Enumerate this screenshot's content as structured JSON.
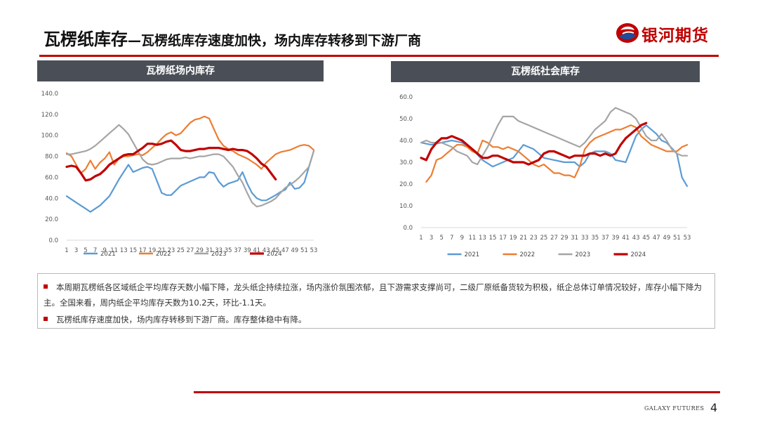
{
  "header": {
    "title_main": "瓦楞纸库存",
    "title_sub": "—瓦楞纸库存速度加快，场内库存转移到下游厂商",
    "logo_text": "银河期货"
  },
  "colors": {
    "accent": "#c00000",
    "header_bar": "#4a4f57",
    "s2021": "#5b9bd5",
    "s2022": "#ed7d31",
    "s2023": "#a5a5a5",
    "s2024": "#c00000"
  },
  "charts": {
    "left_title": "瓦楞纸场内库存",
    "right_title": "瓦楞纸社会库存"
  },
  "chart_data": [
    {
      "type": "line",
      "title": "瓦楞纸场内库存",
      "ylim": [
        0,
        140
      ],
      "ytick_labels": [
        "0.0",
        "20.0",
        "40.0",
        "60.0",
        "80.0",
        "100.0",
        "120.0",
        "140.0"
      ],
      "xtick_labels": [
        "1",
        "3",
        "5",
        "7",
        "9",
        "11",
        "13",
        "15",
        "17",
        "19",
        "21",
        "23",
        "25",
        "27",
        "29",
        "31",
        "33",
        "35",
        "37",
        "39",
        "41",
        "43",
        "45",
        "47",
        "49",
        "51",
        "53"
      ],
      "x_range": [
        1,
        53
      ],
      "legend_position": "bottom",
      "series": [
        {
          "name": "2021",
          "color": "#5b9bd5",
          "x": [
            1,
            3,
            5,
            6,
            8,
            10,
            12,
            13,
            14,
            15,
            17,
            18,
            19,
            21,
            22,
            23,
            25,
            27,
            29,
            30,
            31,
            32,
            33,
            34,
            35,
            37,
            38,
            39,
            40,
            41,
            42,
            43,
            45,
            46,
            47,
            48,
            49,
            50,
            51,
            52,
            53
          ],
          "values": [
            42,
            36,
            30,
            27,
            33,
            42,
            58,
            65,
            72,
            65,
            69,
            70,
            68,
            45,
            43,
            43,
            52,
            56,
            60,
            60,
            65,
            64,
            56,
            51,
            54,
            57,
            65,
            54,
            45,
            40,
            38,
            38,
            43,
            46,
            48,
            55,
            49,
            50,
            55,
            70,
            85
          ]
        },
        {
          "name": "2022",
          "color": "#ed7d31",
          "x": [
            1,
            2,
            3,
            4,
            5,
            6,
            7,
            8,
            9,
            10,
            11,
            12,
            13,
            14,
            15,
            16,
            17,
            18,
            19,
            20,
            21,
            22,
            23,
            24,
            25,
            26,
            27,
            28,
            29,
            30,
            31,
            32,
            33,
            34,
            35,
            36,
            37,
            38,
            39,
            40,
            41,
            42,
            43,
            44,
            45,
            46,
            47,
            48,
            49,
            50,
            51,
            52,
            53
          ],
          "values": [
            83,
            80,
            72,
            64,
            68,
            76,
            68,
            74,
            78,
            84,
            72,
            78,
            80,
            80,
            81,
            82,
            81,
            84,
            88,
            92,
            97,
            101,
            103,
            100,
            102,
            107,
            112,
            115,
            116,
            118,
            116,
            106,
            96,
            90,
            87,
            85,
            82,
            80,
            78,
            75,
            72,
            68,
            74,
            78,
            82,
            84,
            85,
            86,
            88,
            90,
            91,
            90,
            86
          ]
        },
        {
          "name": "2023",
          "color": "#a5a5a5",
          "x": [
            1,
            2,
            3,
            4,
            5,
            6,
            7,
            8,
            9,
            10,
            11,
            12,
            13,
            14,
            15,
            16,
            17,
            18,
            19,
            20,
            21,
            22,
            23,
            24,
            25,
            26,
            27,
            28,
            29,
            30,
            31,
            32,
            33,
            34,
            35,
            36,
            37,
            38,
            39,
            40,
            41,
            42,
            43,
            44,
            45,
            46,
            47,
            48,
            49,
            50,
            51,
            52,
            53
          ],
          "values": [
            82,
            82,
            83,
            84,
            85,
            87,
            90,
            94,
            98,
            102,
            106,
            110,
            106,
            101,
            93,
            85,
            77,
            73,
            72,
            73,
            75,
            77,
            78,
            78,
            78,
            79,
            78,
            79,
            80,
            80,
            81,
            82,
            82,
            80,
            75,
            70,
            62,
            55,
            45,
            36,
            32,
            33,
            35,
            37,
            40,
            45,
            50,
            53,
            56,
            60,
            65,
            70,
            85
          ]
        },
        {
          "name": "2024",
          "color": "#c00000",
          "x": [
            1,
            2,
            3,
            4,
            5,
            6,
            7,
            8,
            9,
            10,
            11,
            12,
            13,
            14,
            15,
            16,
            17,
            18,
            19,
            20,
            21,
            22,
            23,
            24,
            25,
            26,
            27,
            28,
            29,
            30,
            31,
            32,
            33,
            34,
            35,
            36,
            37,
            38,
            39,
            40,
            41,
            42,
            43,
            44,
            45
          ],
          "values": [
            70,
            71,
            70,
            64,
            57,
            58,
            61,
            63,
            67,
            72,
            75,
            78,
            81,
            82,
            82,
            85,
            88,
            92,
            92,
            91,
            92,
            94,
            95,
            91,
            86,
            85,
            85,
            86,
            87,
            87,
            88,
            88,
            88,
            87,
            86,
            87,
            86,
            86,
            85,
            82,
            78,
            73,
            70,
            64,
            58
          ]
        }
      ]
    },
    {
      "type": "line",
      "title": "瓦楞纸社会库存",
      "ylim": [
        0,
        60
      ],
      "ytick_labels": [
        "0.0",
        "10.0",
        "20.0",
        "30.0",
        "40.0",
        "50.0",
        "60.0"
      ],
      "xtick_labels": [
        "1",
        "3",
        "5",
        "7",
        "9",
        "11",
        "13",
        "15",
        "17",
        "19",
        "21",
        "23",
        "25",
        "27",
        "29",
        "31",
        "33",
        "35",
        "37",
        "39",
        "41",
        "43",
        "45",
        "47",
        "49",
        "51",
        "53"
      ],
      "x_range": [
        1,
        53
      ],
      "legend_position": "bottom",
      "series": [
        {
          "name": "2021",
          "color": "#5b9bd5",
          "x": [
            1,
            3,
            5,
            7,
            9,
            11,
            13,
            15,
            17,
            19,
            20,
            21,
            23,
            25,
            27,
            29,
            31,
            32,
            33,
            34,
            35,
            37,
            38,
            39,
            41,
            43,
            44,
            45,
            47,
            48,
            49,
            51,
            52,
            53
          ],
          "values": [
            39,
            38,
            39,
            40,
            39,
            36,
            31,
            28,
            30,
            32,
            35,
            38,
            36,
            32,
            31,
            30,
            30,
            28,
            30,
            34,
            35,
            35,
            34,
            31,
            30,
            42,
            45,
            47,
            43,
            40,
            39,
            34,
            23,
            19
          ]
        },
        {
          "name": "2022",
          "color": "#ed7d31",
          "x": [
            2,
            3,
            4,
            5,
            6,
            7,
            8,
            9,
            10,
            11,
            12,
            13,
            14,
            15,
            16,
            17,
            18,
            19,
            20,
            21,
            22,
            23,
            24,
            25,
            26,
            27,
            28,
            29,
            30,
            31,
            32,
            33,
            34,
            35,
            36,
            37,
            38,
            39,
            40,
            41,
            42,
            43,
            44,
            45,
            46,
            47,
            48,
            49,
            50,
            51,
            52,
            53
          ],
          "values": [
            21,
            24,
            31,
            32,
            34,
            36,
            38,
            38,
            37,
            35,
            34,
            40,
            39,
            37,
            37,
            36,
            37,
            36,
            35,
            33,
            31,
            29,
            28,
            29,
            27,
            25,
            25,
            24,
            24,
            23,
            28,
            36,
            39,
            41,
            42,
            43,
            44,
            45,
            45,
            46,
            47,
            46,
            42,
            40,
            38,
            37,
            36,
            35,
            35,
            35,
            37,
            38
          ]
        },
        {
          "name": "2023",
          "color": "#a5a5a5",
          "x": [
            1,
            2,
            3,
            4,
            5,
            6,
            7,
            8,
            9,
            10,
            11,
            12,
            13,
            14,
            15,
            16,
            17,
            18,
            19,
            20,
            21,
            22,
            23,
            24,
            25,
            26,
            27,
            28,
            29,
            30,
            31,
            32,
            33,
            34,
            35,
            36,
            37,
            38,
            39,
            40,
            41,
            42,
            43,
            44,
            45,
            46,
            47,
            48,
            49,
            50,
            51,
            52,
            53
          ],
          "values": [
            39,
            40,
            39,
            39,
            39,
            38,
            37,
            35,
            34,
            33,
            30,
            29,
            33,
            37,
            42,
            47,
            51,
            51,
            51,
            49,
            48,
            47,
            46,
            45,
            44,
            43,
            42,
            41,
            40,
            39,
            38,
            37,
            39,
            42,
            45,
            47,
            49,
            53,
            55,
            54,
            53,
            52,
            50,
            46,
            42,
            40,
            40,
            43,
            40,
            36,
            34,
            33,
            33
          ]
        },
        {
          "name": "2024",
          "color": "#c00000",
          "x": [
            1,
            2,
            3,
            4,
            5,
            6,
            7,
            8,
            9,
            10,
            11,
            12,
            13,
            14,
            15,
            16,
            17,
            18,
            19,
            20,
            21,
            22,
            23,
            24,
            25,
            26,
            27,
            28,
            29,
            30,
            31,
            32,
            33,
            34,
            35,
            36,
            37,
            38,
            39,
            40,
            41,
            42,
            43,
            44,
            45
          ],
          "values": [
            32,
            31,
            36,
            39,
            41,
            41,
            42,
            41,
            40,
            38,
            36,
            34,
            32,
            32,
            33,
            33,
            32,
            31,
            30,
            30,
            30,
            29,
            30,
            31,
            34,
            35,
            35,
            34,
            33,
            32,
            33,
            33,
            33,
            34,
            34,
            33,
            34,
            33,
            34,
            38,
            41,
            43,
            45,
            47,
            48
          ]
        }
      ]
    }
  ],
  "notes": [
    "本周期瓦楞纸各区域纸企平均库存天数小幅下降，龙头纸企持续拉涨，场内涨价氛围浓郁，且下游需求支撑尚可，二级厂原纸备货较为积极，纸企总体订单情况较好，库存小幅下降为主。全国来看，周内纸企平均库存天数为10.2天，环比-1.1天。",
    "瓦楞纸库存速度加快，场内库存转移到下游厂商。库存整体稳中有降。"
  ],
  "footer": {
    "brand": "GALAXY FUTURES",
    "page_number": "4"
  }
}
